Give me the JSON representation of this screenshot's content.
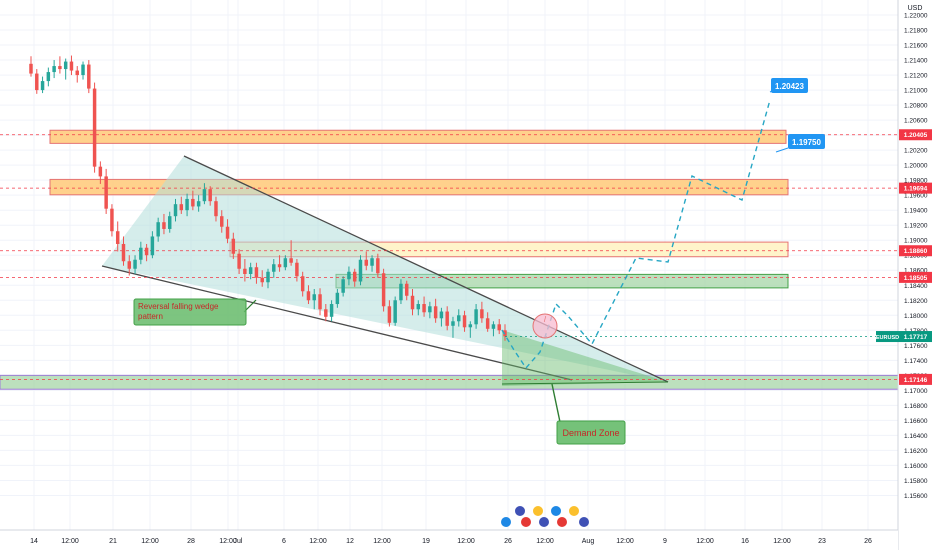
{
  "chart_data": {
    "type": "candlestick",
    "instrument": "EURUSD",
    "currency": "USD",
    "yrange": [
      1.149,
      1.222
    ],
    "y_ticks": [
      "1.22000",
      "1.21800",
      "1.21600",
      "1.21400",
      "1.21200",
      "1.21000",
      "1.20800",
      "1.20600",
      "1.20400",
      "1.20200",
      "1.20000",
      "1.19800",
      "1.19600",
      "1.19400",
      "1.19200",
      "1.19000",
      "1.18800",
      "1.18600",
      "1.18400",
      "1.18200",
      "1.18000",
      "1.17800",
      "1.17600",
      "1.17400",
      "1.17200",
      "1.17000",
      "1.16800",
      "1.16600",
      "1.16400",
      "1.16200",
      "1.16000",
      "1.15800",
      "1.15600"
    ],
    "x_ticks": [
      "14",
      "12:00",
      "21",
      "12:00",
      "28",
      "12:00",
      "Jul",
      "6",
      "12:00",
      "12",
      "12:00",
      "19",
      "12:00",
      "26",
      "12:00",
      "Aug",
      "12:00",
      "9",
      "12:00",
      "16",
      "12:00",
      "23",
      "26"
    ],
    "price_labels": [
      {
        "text": "1.20405",
        "color": "#f23645",
        "value": 1.20405
      },
      {
        "text": "1.19694",
        "color": "#f23645",
        "value": 1.19694
      },
      {
        "text": "1.18860",
        "color": "#f23645",
        "value": 1.1886
      },
      {
        "text": "1.18505",
        "color": "#f23645",
        "value": 1.18505
      },
      {
        "text": "1.17717",
        "color": "#089981",
        "value": 1.17717
      },
      {
        "text": "1.17146",
        "color": "#f23645",
        "value": 1.17146
      }
    ],
    "zones": [
      {
        "kind": "resistance",
        "y1": 1.20465,
        "y2": 1.2029,
        "color": "#ffcc80"
      },
      {
        "kind": "resistance",
        "y1": 1.1981,
        "y2": 1.19605,
        "color": "#ffcc80"
      },
      {
        "kind": "resistance",
        "y1": 1.18975,
        "y2": 1.1878,
        "color": "#fff3c4"
      },
      {
        "kind": "support",
        "y1": 1.18545,
        "y2": 1.18365,
        "color": "#a5d6a7"
      },
      {
        "kind": "demand",
        "y1": 1.172,
        "y2": 1.17015,
        "color": "#a5d6a7"
      }
    ],
    "targets": [
      {
        "text": "1.20423",
        "value": 1.20423
      },
      {
        "text": "1.19750",
        "value": 1.1975
      }
    ],
    "annotations": [
      {
        "text": "Reversal falling wedge pattern"
      },
      {
        "text": "Demand Zone"
      }
    ],
    "candles": [
      [
        1.2135,
        1.2145,
        1.2118,
        1.2122
      ],
      [
        1.2122,
        1.2128,
        1.2095,
        1.21
      ],
      [
        1.21,
        1.2118,
        1.2096,
        1.2112
      ],
      [
        1.2112,
        1.213,
        1.2105,
        1.2124
      ],
      [
        1.2124,
        1.214,
        1.2116,
        1.2132
      ],
      [
        1.2132,
        1.2145,
        1.2122,
        1.2128
      ],
      [
        1.2128,
        1.2142,
        1.2114,
        1.2138
      ],
      [
        1.2138,
        1.2146,
        1.212,
        1.2126
      ],
      [
        1.2126,
        1.2132,
        1.211,
        1.212
      ],
      [
        1.212,
        1.2138,
        1.2114,
        1.2134
      ],
      [
        1.2134,
        1.214,
        1.2096,
        1.2102
      ],
      [
        1.2102,
        1.211,
        1.199,
        1.1998
      ],
      [
        1.1998,
        1.2005,
        1.1975,
        1.1985
      ],
      [
        1.1985,
        1.1995,
        1.1935,
        1.1942
      ],
      [
        1.1942,
        1.1948,
        1.1905,
        1.1912
      ],
      [
        1.1912,
        1.1925,
        1.1885,
        1.1895
      ],
      [
        1.1895,
        1.1905,
        1.1866,
        1.1872
      ],
      [
        1.1872,
        1.188,
        1.1853,
        1.1862
      ],
      [
        1.1862,
        1.188,
        1.1855,
        1.1874
      ],
      [
        1.1874,
        1.1898,
        1.1868,
        1.189
      ],
      [
        1.189,
        1.1895,
        1.1872,
        1.188
      ],
      [
        1.188,
        1.1912,
        1.1876,
        1.1905
      ],
      [
        1.1905,
        1.193,
        1.1898,
        1.1924
      ],
      [
        1.1924,
        1.1935,
        1.1908,
        1.1915
      ],
      [
        1.1915,
        1.1938,
        1.191,
        1.1932
      ],
      [
        1.1932,
        1.1955,
        1.1925,
        1.1948
      ],
      [
        1.1948,
        1.1958,
        1.1935,
        1.194
      ],
      [
        1.194,
        1.1962,
        1.1932,
        1.1955
      ],
      [
        1.1955,
        1.1966,
        1.194,
        1.1945
      ],
      [
        1.1945,
        1.196,
        1.1938,
        1.1952
      ],
      [
        1.1952,
        1.1976,
        1.1948,
        1.1968
      ],
      [
        1.1968,
        1.1972,
        1.1946,
        1.1952
      ],
      [
        1.1952,
        1.1958,
        1.1925,
        1.1932
      ],
      [
        1.1932,
        1.194,
        1.191,
        1.1918
      ],
      [
        1.1918,
        1.1928,
        1.1896,
        1.1902
      ],
      [
        1.1902,
        1.191,
        1.1875,
        1.1882
      ],
      [
        1.1882,
        1.1888,
        1.1855,
        1.1862
      ],
      [
        1.1862,
        1.1875,
        1.1845,
        1.1855
      ],
      [
        1.1855,
        1.187,
        1.1848,
        1.1864
      ],
      [
        1.1864,
        1.187,
        1.1842,
        1.185
      ],
      [
        1.185,
        1.186,
        1.1838,
        1.1844
      ],
      [
        1.1844,
        1.1862,
        1.1836,
        1.1858
      ],
      [
        1.1858,
        1.1875,
        1.185,
        1.1868
      ],
      [
        1.1868,
        1.188,
        1.1858,
        1.1864
      ],
      [
        1.1864,
        1.188,
        1.186,
        1.1876
      ],
      [
        1.1876,
        1.19,
        1.1866,
        1.187
      ],
      [
        1.187,
        1.1875,
        1.1845,
        1.1852
      ],
      [
        1.1852,
        1.1858,
        1.1825,
        1.1832
      ],
      [
        1.1832,
        1.184,
        1.1815,
        1.182
      ],
      [
        1.182,
        1.1835,
        1.1808,
        1.1828
      ],
      [
        1.1828,
        1.1836,
        1.18,
        1.1808
      ],
      [
        1.1808,
        1.1815,
        1.1792,
        1.1798
      ],
      [
        1.1798,
        1.182,
        1.1792,
        1.1815
      ],
      [
        1.1815,
        1.1835,
        1.181,
        1.183
      ],
      [
        1.183,
        1.1852,
        1.1825,
        1.1848
      ],
      [
        1.1848,
        1.1865,
        1.184,
        1.1858
      ],
      [
        1.1858,
        1.1862,
        1.1838,
        1.1845
      ],
      [
        1.1845,
        1.188,
        1.184,
        1.1874
      ],
      [
        1.1874,
        1.1885,
        1.186,
        1.1866
      ],
      [
        1.1866,
        1.188,
        1.1858,
        1.1876
      ],
      [
        1.1876,
        1.1882,
        1.185,
        1.1856
      ],
      [
        1.1856,
        1.1862,
        1.1805,
        1.1812
      ],
      [
        1.1812,
        1.182,
        1.1785,
        1.179
      ],
      [
        1.179,
        1.1825,
        1.1786,
        1.182
      ],
      [
        1.182,
        1.1848,
        1.1815,
        1.1842
      ],
      [
        1.1842,
        1.1846,
        1.182,
        1.1826
      ],
      [
        1.1826,
        1.1835,
        1.18,
        1.1808
      ],
      [
        1.1808,
        1.182,
        1.18,
        1.1815
      ],
      [
        1.1815,
        1.1825,
        1.1798,
        1.1804
      ],
      [
        1.1804,
        1.1818,
        1.1796,
        1.1812
      ],
      [
        1.1812,
        1.1822,
        1.179,
        1.1796
      ],
      [
        1.1796,
        1.181,
        1.1785,
        1.1805
      ],
      [
        1.1805,
        1.1812,
        1.178,
        1.1786
      ],
      [
        1.1786,
        1.1798,
        1.177,
        1.1792
      ],
      [
        1.1792,
        1.1808,
        1.1785,
        1.18
      ],
      [
        1.18,
        1.1806,
        1.1778,
        1.1784
      ],
      [
        1.1784,
        1.1792,
        1.177,
        1.1788
      ],
      [
        1.1788,
        1.1815,
        1.1782,
        1.1808
      ],
      [
        1.1808,
        1.1818,
        1.179,
        1.1796
      ],
      [
        1.1796,
        1.1804,
        1.1778,
        1.1782
      ],
      [
        1.1782,
        1.1792,
        1.1772,
        1.1788
      ],
      [
        1.1788,
        1.1795,
        1.1775,
        1.178
      ],
      [
        1.178,
        1.1788,
        1.1766,
        1.1772
      ]
    ]
  }
}
